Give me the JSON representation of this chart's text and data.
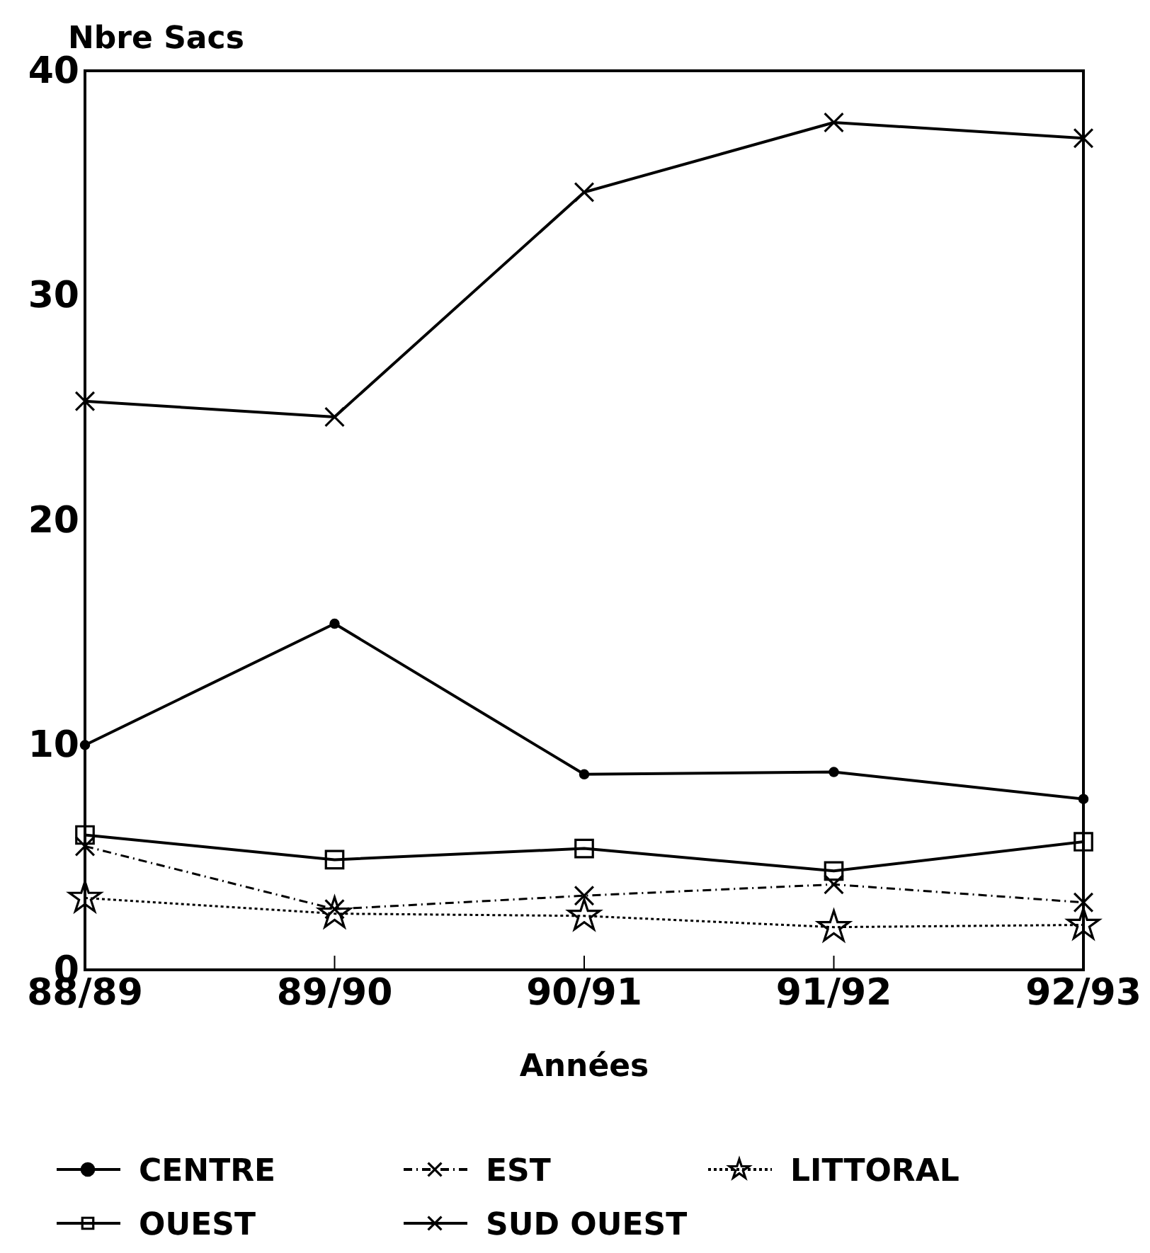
{
  "chart_data": {
    "type": "line",
    "xlabel": "Années",
    "ylabel": "Nbre Sacs",
    "categories": [
      "88/89",
      "89/90",
      "90/91",
      "91/92",
      "92/93"
    ],
    "series": [
      {
        "name": "CENTRE",
        "color": "#000000",
        "marker": "circle",
        "line_style": "solid",
        "values": [
          10,
          15.4,
          8.7,
          8.8,
          7.6
        ]
      },
      {
        "name": "EST",
        "color": "#000000",
        "marker": "cross",
        "line_style": "dashed",
        "values": [
          5.5,
          2.7,
          3.3,
          3.8,
          3.0
        ]
      },
      {
        "name": "LITTORAL",
        "color": "#000000",
        "marker": "star",
        "line_style": "dotted",
        "values": [
          3.2,
          2.5,
          2.4,
          1.9,
          2.0
        ]
      },
      {
        "name": "OUEST",
        "color": "#000000",
        "marker": "square",
        "line_style": "solid",
        "values": [
          6.0,
          4.9,
          5.4,
          4.4,
          5.7
        ]
      },
      {
        "name": "SUD OUEST",
        "color": "#000000",
        "marker": "cross",
        "line_style": "solid",
        "values": [
          25.3,
          24.6,
          34.6,
          37.7,
          37.0
        ]
      }
    ],
    "ylim": [
      0,
      40
    ],
    "yticks": [
      0,
      10,
      20,
      30,
      40
    ],
    "grid": false,
    "legend": "bottom"
  }
}
